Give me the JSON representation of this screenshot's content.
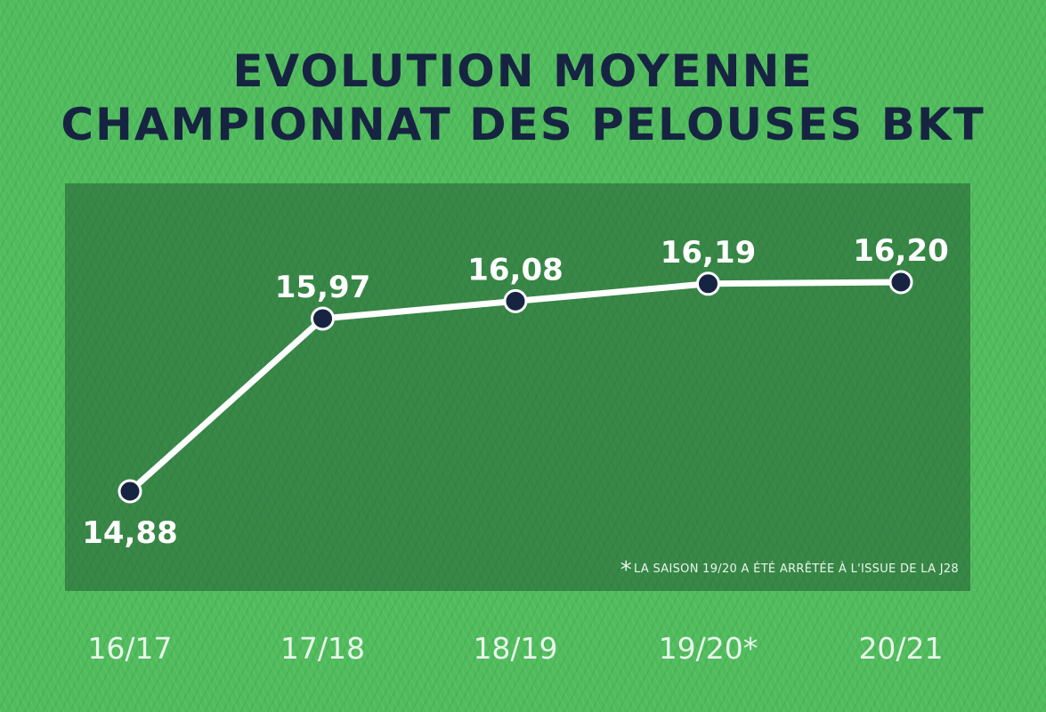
{
  "title": {
    "line1": "EVOLUTION MOYENNE",
    "line2": "CHAMPIONNAT DES PELOUSES BKT"
  },
  "footnote": {
    "marker": "*",
    "text": "LA SAISON 19/20 A ÉTÉ ARRÊTÉE À L'ISSUE DE LA J28"
  },
  "colors": {
    "background": "#4fbc5c",
    "panel": "#2f6b3f",
    "line": "#ffffff",
    "marker": "#172441",
    "title": "#172441"
  },
  "chart_data": {
    "type": "line",
    "categories": [
      "16/17",
      "17/18",
      "18/19",
      "19/20*",
      "20/21"
    ],
    "values": [
      14.88,
      15.97,
      16.08,
      16.19,
      16.2
    ],
    "value_labels": [
      "14,88",
      "15,97",
      "16,08",
      "16,19",
      "16,20"
    ],
    "title": "EVOLUTION MOYENNE CHAMPIONNAT DES PELOUSES BKT",
    "xlabel": "",
    "ylabel": "",
    "grid": false,
    "legend": "none"
  }
}
